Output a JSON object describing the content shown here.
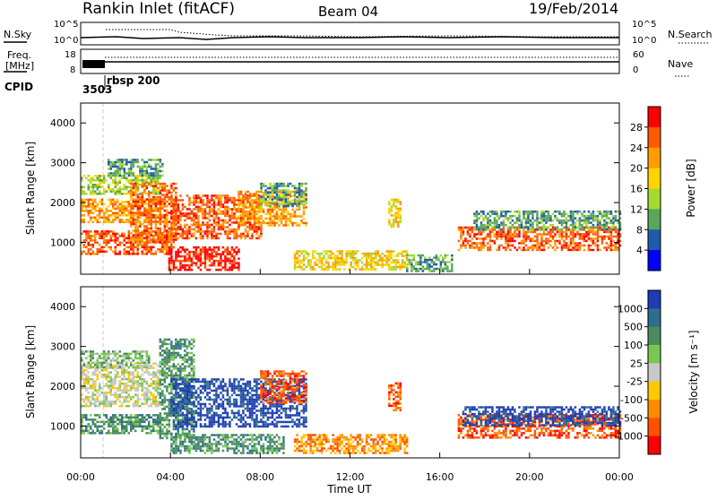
{
  "header": {
    "station": "Rankin Inlet (fitACF)",
    "beam": "Beam 04",
    "date": "19/Feb/2014"
  },
  "top_panels": {
    "nsky_label": "N.Sky",
    "nsearch_label": "N.Search",
    "nsky_ticks": [
      "10^5",
      "10^0"
    ],
    "nsky_right_ticks": [
      "10^5",
      "10^0"
    ],
    "freq_label": "Freq.",
    "freq_unit": "[MHz]",
    "freq_ticks": [
      "18",
      "8"
    ],
    "nave_label": "Nave",
    "nave_ticks": [
      "60",
      "0"
    ],
    "cpid_label": "CPID",
    "cpid_values": [
      "3503",
      "rbsp 200"
    ]
  },
  "chart_data": [
    {
      "type": "heatmap",
      "name": "power",
      "xlabel": "",
      "ylabel": "Slant Range [km]",
      "x_ticks": [
        "00:00",
        "04:00",
        "08:00",
        "12:00",
        "16:00",
        "20:00",
        "00:00"
      ],
      "y_ticks": [
        "1000",
        "2000",
        "3000",
        "4000"
      ],
      "xlim_hours": [
        0,
        24
      ],
      "ylim_km": [
        200,
        4500
      ],
      "colorbar": {
        "label": "Power [dB]",
        "ticks": [
          "28",
          "24",
          "20",
          "16",
          "12",
          "8",
          "4"
        ],
        "colors": [
          "#ff0000",
          "#ff5a00",
          "#ff9c00",
          "#ffd400",
          "#a4d932",
          "#5aa65a",
          "#1e5aaa",
          "#0000ff"
        ]
      },
      "blobs": [
        {
          "t0": 0.0,
          "t1": 4.0,
          "r0": 700,
          "r1": 1300,
          "level": 1
        },
        {
          "t0": 0.0,
          "t1": 3.8,
          "r0": 1500,
          "r1": 2100,
          "level": 2
        },
        {
          "t0": 0.0,
          "t1": 3.5,
          "r0": 2200,
          "r1": 2700,
          "level": 4
        },
        {
          "t0": 1.2,
          "t1": 3.6,
          "r0": 2700,
          "r1": 3100,
          "level": 5
        },
        {
          "t0": 2.2,
          "t1": 4.2,
          "r0": 1000,
          "r1": 2500,
          "level": 1
        },
        {
          "t0": 3.9,
          "t1": 7.0,
          "r0": 300,
          "r1": 900,
          "level": 0
        },
        {
          "t0": 4.0,
          "t1": 8.0,
          "r0": 1100,
          "r1": 2200,
          "level": 1
        },
        {
          "t0": 7.0,
          "t1": 10.0,
          "r0": 1400,
          "r1": 2300,
          "level": 2
        },
        {
          "t0": 8.0,
          "t1": 10.0,
          "r0": 1900,
          "r1": 2500,
          "level": 5
        },
        {
          "t0": 9.5,
          "t1": 14.5,
          "r0": 300,
          "r1": 800,
          "level": 3
        },
        {
          "t0": 13.7,
          "t1": 14.2,
          "r0": 1400,
          "r1": 2100,
          "level": 3
        },
        {
          "t0": 14.5,
          "t1": 16.5,
          "r0": 300,
          "r1": 700,
          "level": 5
        },
        {
          "t0": 16.8,
          "t1": 24.0,
          "r0": 800,
          "r1": 1400,
          "level": 1
        },
        {
          "t0": 17.5,
          "t1": 24.0,
          "r0": 1300,
          "r1": 1800,
          "level": 5
        }
      ]
    },
    {
      "type": "heatmap",
      "name": "velocity",
      "xlabel": "Time UT",
      "ylabel": "Slant Range [km]",
      "x_ticks": [
        "00:00",
        "04:00",
        "08:00",
        "12:00",
        "16:00",
        "20:00",
        "00:00"
      ],
      "y_ticks": [
        "1000",
        "2000",
        "3000",
        "4000"
      ],
      "xlim_hours": [
        0,
        24
      ],
      "ylim_km": [
        200,
        4500
      ],
      "colorbar": {
        "label": "Velocity [m s⁻¹]",
        "ticks": [
          "1000",
          "500",
          "100",
          "25",
          "-25",
          "-100",
          "-500",
          "-1000"
        ],
        "colors": [
          "#1e3cb4",
          "#2d6e8c",
          "#4b8c5f",
          "#78c850",
          "#c8c8c8",
          "#ffc800",
          "#ff8c00",
          "#ff5000",
          "#ff0000"
        ]
      },
      "blobs": [
        {
          "t0": 0.0,
          "t1": 3.5,
          "r0": 800,
          "r1": 1300,
          "level": 2
        },
        {
          "t0": 0.0,
          "t1": 3.5,
          "r0": 1500,
          "r1": 2600,
          "level": 4
        },
        {
          "t0": 0.0,
          "t1": 3.0,
          "r0": 2500,
          "r1": 2900,
          "level": 3
        },
        {
          "t0": 3.5,
          "t1": 5.0,
          "r0": 700,
          "r1": 3200,
          "level": 2
        },
        {
          "t0": 4.0,
          "t1": 10.0,
          "r0": 1000,
          "r1": 2200,
          "level": 0
        },
        {
          "t0": 8.0,
          "t1": 10.0,
          "r0": 1600,
          "r1": 2400,
          "level": 7
        },
        {
          "t0": 4.0,
          "t1": 9.0,
          "r0": 300,
          "r1": 800,
          "level": 2
        },
        {
          "t0": 9.5,
          "t1": 14.5,
          "r0": 300,
          "r1": 800,
          "level": 6
        },
        {
          "t0": 13.7,
          "t1": 14.2,
          "r0": 1400,
          "r1": 2100,
          "level": 7
        },
        {
          "t0": 16.8,
          "t1": 24.0,
          "r0": 700,
          "r1": 1300,
          "level": 7
        },
        {
          "t0": 17.0,
          "t1": 24.0,
          "r0": 1000,
          "r1": 1500,
          "level": 0
        }
      ]
    }
  ]
}
